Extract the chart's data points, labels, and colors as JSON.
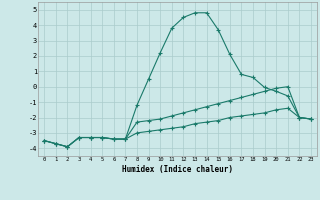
{
  "xlabel": "Humidex (Indice chaleur)",
  "bg_color": "#cce8e8",
  "grid_color": "#aacccc",
  "line_color": "#1a7a6a",
  "xlim": [
    -0.5,
    23.5
  ],
  "ylim": [
    -4.5,
    5.5
  ],
  "xticks": [
    0,
    1,
    2,
    3,
    4,
    5,
    6,
    7,
    8,
    9,
    10,
    11,
    12,
    13,
    14,
    15,
    16,
    17,
    18,
    19,
    20,
    21,
    22,
    23
  ],
  "yticks": [
    -4,
    -3,
    -2,
    -1,
    0,
    1,
    2,
    3,
    4,
    5
  ],
  "curve1_x": [
    0,
    1,
    2,
    3,
    4,
    5,
    6,
    7,
    8,
    9,
    10,
    11,
    12,
    13,
    14,
    15,
    16,
    17,
    18,
    19,
    20,
    21,
    22,
    23
  ],
  "curve1_y": [
    -3.5,
    -3.7,
    -3.9,
    -3.3,
    -3.3,
    -3.3,
    -3.4,
    -3.4,
    -1.2,
    0.5,
    2.2,
    3.8,
    4.5,
    4.8,
    4.8,
    3.7,
    2.1,
    0.8,
    0.6,
    -0.05,
    -0.3,
    -0.6,
    -2.0,
    -2.1
  ],
  "curve2_x": [
    0,
    1,
    2,
    3,
    4,
    5,
    6,
    7,
    8,
    9,
    10,
    11,
    12,
    13,
    14,
    15,
    16,
    17,
    18,
    19,
    20,
    21,
    22,
    23
  ],
  "curve2_y": [
    -3.5,
    -3.7,
    -3.9,
    -3.3,
    -3.3,
    -3.3,
    -3.4,
    -3.4,
    -2.3,
    -2.2,
    -2.1,
    -1.9,
    -1.7,
    -1.5,
    -1.3,
    -1.1,
    -0.9,
    -0.7,
    -0.5,
    -0.3,
    -0.1,
    0.0,
    -2.0,
    -2.1
  ],
  "curve3_x": [
    0,
    1,
    2,
    3,
    4,
    5,
    6,
    7,
    8,
    9,
    10,
    11,
    12,
    13,
    14,
    15,
    16,
    17,
    18,
    19,
    20,
    21,
    22,
    23
  ],
  "curve3_y": [
    -3.5,
    -3.7,
    -3.9,
    -3.3,
    -3.3,
    -3.3,
    -3.4,
    -3.4,
    -3.0,
    -2.9,
    -2.8,
    -2.7,
    -2.6,
    -2.4,
    -2.3,
    -2.2,
    -2.0,
    -1.9,
    -1.8,
    -1.7,
    -1.5,
    -1.4,
    -2.0,
    -2.1
  ]
}
